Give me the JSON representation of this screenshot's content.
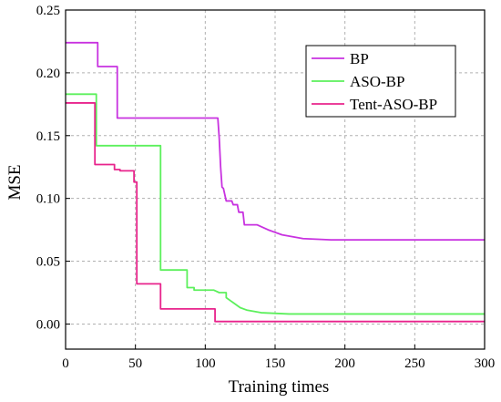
{
  "chart_data": {
    "type": "line",
    "xlabel": "Training times",
    "ylabel": "MSE",
    "xlim": [
      0,
      300
    ],
    "ylim": [
      -0.02,
      0.25
    ],
    "xticks": [
      "0",
      "50",
      "100",
      "150",
      "200",
      "250",
      "300"
    ],
    "yticks": [
      "0.00",
      "0.05",
      "0.10",
      "0.15",
      "0.20",
      "0.25"
    ],
    "grid": true,
    "legend_position": "top-right",
    "series": [
      {
        "name": "BP",
        "color": "#c832e0",
        "x": [
          0,
          23,
          23,
          37,
          37,
          109,
          110,
          111,
          112,
          113,
          115,
          119,
          120,
          123,
          124,
          127,
          128,
          137,
          145,
          155,
          170,
          190,
          220,
          260,
          300
        ],
        "y": [
          0.224,
          0.224,
          0.205,
          0.205,
          0.164,
          0.164,
          0.148,
          0.125,
          0.109,
          0.108,
          0.098,
          0.098,
          0.095,
          0.095,
          0.089,
          0.089,
          0.079,
          0.079,
          0.075,
          0.071,
          0.068,
          0.067,
          0.067,
          0.067,
          0.067
        ]
      },
      {
        "name": "ASO-BP",
        "color": "#5cf05c",
        "x": [
          0,
          22,
          22,
          68,
          68,
          87,
          87,
          92,
          92,
          106,
          110,
          115,
          115,
          120,
          125,
          130,
          140,
          160,
          200,
          300
        ],
        "y": [
          0.183,
          0.183,
          0.142,
          0.142,
          0.043,
          0.043,
          0.029,
          0.029,
          0.027,
          0.027,
          0.025,
          0.025,
          0.021,
          0.017,
          0.013,
          0.011,
          0.009,
          0.008,
          0.008,
          0.008
        ]
      },
      {
        "name": "Tent-ASO-BP",
        "color": "#e8248c",
        "x": [
          0,
          21,
          21,
          35,
          35,
          39,
          39,
          49,
          49,
          51,
          51,
          68,
          68,
          107,
          107,
          300
        ],
        "y": [
          0.176,
          0.176,
          0.127,
          0.127,
          0.123,
          0.123,
          0.122,
          0.122,
          0.113,
          0.113,
          0.032,
          0.032,
          0.012,
          0.012,
          0.002,
          0.002
        ]
      }
    ]
  }
}
